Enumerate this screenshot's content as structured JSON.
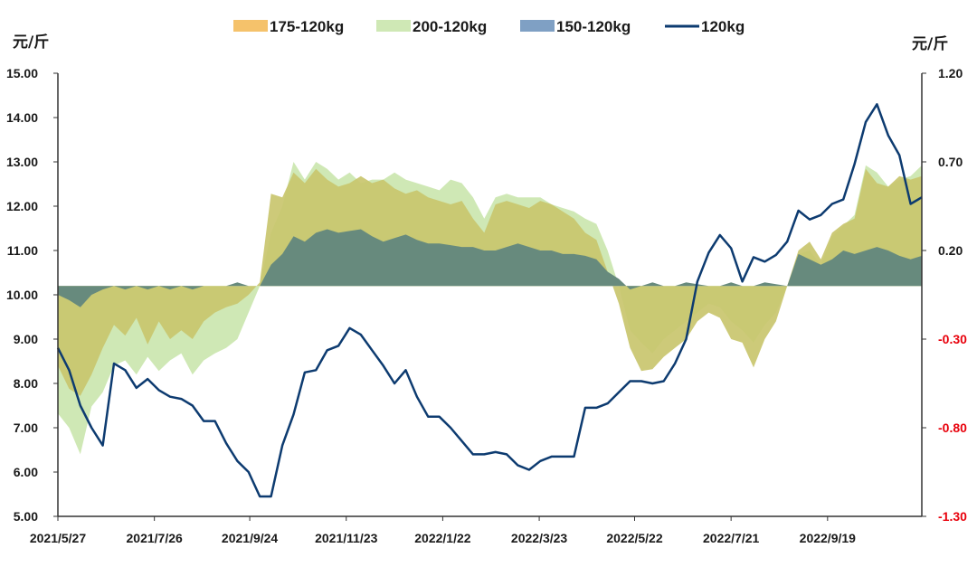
{
  "chart_data": {
    "type": "area",
    "title": "",
    "legend_position": "top",
    "left_unit": "元/斤",
    "right_unit": "元/斤",
    "left_axis": {
      "min": 5.0,
      "max": 15.0,
      "ticks": [
        "5.00",
        "6.00",
        "7.00",
        "8.00",
        "9.00",
        "10.00",
        "11.00",
        "12.00",
        "13.00",
        "14.00",
        "15.00"
      ]
    },
    "right_axis": {
      "min": -1.3,
      "max": 1.2,
      "ticks": [
        {
          "label": "-1.30",
          "value": -1.3,
          "color": "#e8000b"
        },
        {
          "label": "-0.80",
          "value": -0.8,
          "color": "#e8000b"
        },
        {
          "label": "-0.30",
          "value": -0.3,
          "color": "#e8000b"
        },
        {
          "label": "0.20",
          "value": 0.2,
          "color": "#1a1a1a"
        },
        {
          "label": "0.70",
          "value": 0.7,
          "color": "#1a1a1a"
        },
        {
          "label": "1.20",
          "value": 1.2,
          "color": "#1a1a1a"
        }
      ]
    },
    "x_ticks": [
      {
        "label": "2021/5/27",
        "index": 0
      },
      {
        "label": "2021/7/26",
        "index": 8.6
      },
      {
        "label": "2021/9/24",
        "index": 17.1
      },
      {
        "label": "2021/11/23",
        "index": 25.7
      },
      {
        "label": "2022/1/22",
        "index": 34.3
      },
      {
        "label": "2022/3/23",
        "index": 42.9
      },
      {
        "label": "2022/5/22",
        "index": 51.4
      },
      {
        "label": "2022/7/21",
        "index": 60.0
      },
      {
        "label": "2022/9/19",
        "index": 68.6
      }
    ],
    "x_count": 78,
    "baseline": 10.2,
    "colors": {
      "s175": "#f5c26b",
      "s200": "#cfe8b5",
      "s150": "#7fa0c4",
      "line": "#0d3b70",
      "overlap_dark": "#678a7d",
      "overlap_olive": "#c9c66e"
    },
    "series": [
      {
        "name": "175-120kg",
        "key": "s175",
        "axis": "right",
        "values": [
          -0.45,
          -0.58,
          -0.62,
          -0.5,
          -0.35,
          -0.22,
          -0.28,
          -0.18,
          -0.33,
          -0.2,
          -0.3,
          -0.25,
          -0.3,
          -0.2,
          -0.15,
          -0.12,
          -0.1,
          -0.05,
          0.02,
          0.52,
          0.5,
          0.64,
          0.58,
          0.66,
          0.6,
          0.56,
          0.58,
          0.62,
          0.58,
          0.6,
          0.55,
          0.52,
          0.54,
          0.5,
          0.48,
          0.46,
          0.48,
          0.38,
          0.3,
          0.46,
          0.48,
          0.46,
          0.44,
          0.48,
          0.46,
          0.42,
          0.38,
          0.3,
          0.26,
          0.08,
          -0.1,
          -0.35,
          -0.48,
          -0.47,
          -0.4,
          -0.35,
          -0.3,
          -0.2,
          -0.15,
          -0.18,
          -0.3,
          -0.32,
          -0.46,
          -0.3,
          -0.2,
          0.0,
          0.2,
          0.25,
          0.15,
          0.3,
          0.35,
          0.38,
          0.66,
          0.58,
          0.56,
          0.62,
          0.6,
          0.62
        ]
      },
      {
        "name": "200-120kg",
        "key": "s200",
        "axis": "right",
        "values": [
          -0.72,
          -0.8,
          -0.95,
          -0.68,
          -0.6,
          -0.45,
          -0.42,
          -0.5,
          -0.4,
          -0.48,
          -0.42,
          -0.38,
          -0.5,
          -0.42,
          -0.38,
          -0.35,
          -0.3,
          -0.15,
          0.0,
          0.3,
          0.45,
          0.7,
          0.6,
          0.7,
          0.66,
          0.6,
          0.64,
          0.58,
          0.6,
          0.6,
          0.64,
          0.6,
          0.58,
          0.56,
          0.54,
          0.6,
          0.58,
          0.5,
          0.38,
          0.5,
          0.52,
          0.5,
          0.5,
          0.5,
          0.46,
          0.44,
          0.42,
          0.38,
          0.35,
          0.2,
          0.0,
          -0.25,
          -0.32,
          -0.38,
          -0.3,
          -0.25,
          -0.2,
          -0.15,
          -0.1,
          -0.12,
          -0.2,
          -0.25,
          -0.32,
          -0.22,
          -0.15,
          0.0,
          0.18,
          0.2,
          0.12,
          0.28,
          0.34,
          0.4,
          0.68,
          0.64,
          0.56,
          0.6,
          0.62,
          0.68
        ]
      },
      {
        "name": "150-120kg",
        "key": "s150",
        "axis": "right",
        "values": [
          -0.05,
          -0.08,
          -0.12,
          -0.05,
          -0.02,
          0.0,
          -0.02,
          0.0,
          -0.02,
          0.0,
          -0.02,
          0.0,
          -0.02,
          0.0,
          0.0,
          0.0,
          0.02,
          0.0,
          0.0,
          0.12,
          0.18,
          0.28,
          0.25,
          0.3,
          0.32,
          0.3,
          0.31,
          0.32,
          0.28,
          0.25,
          0.27,
          0.29,
          0.26,
          0.24,
          0.24,
          0.23,
          0.22,
          0.22,
          0.2,
          0.2,
          0.22,
          0.24,
          0.22,
          0.2,
          0.2,
          0.18,
          0.18,
          0.17,
          0.15,
          0.08,
          0.04,
          -0.02,
          0.0,
          0.02,
          0.0,
          0.0,
          0.02,
          0.01,
          0.0,
          0.0,
          0.02,
          0.0,
          0.0,
          0.02,
          0.01,
          0.0,
          0.18,
          0.15,
          0.12,
          0.15,
          0.2,
          0.18,
          0.2,
          0.22,
          0.2,
          0.17,
          0.15,
          0.17
        ]
      },
      {
        "name": "120kg",
        "key": "line",
        "axis": "left",
        "style": "line",
        "values": [
          8.8,
          8.3,
          7.5,
          7.0,
          6.6,
          8.45,
          8.3,
          7.9,
          8.1,
          7.85,
          7.7,
          7.65,
          7.5,
          7.15,
          7.15,
          6.65,
          6.25,
          6.0,
          5.45,
          5.45,
          6.6,
          7.3,
          8.25,
          8.3,
          8.75,
          8.85,
          9.25,
          9.1,
          8.75,
          8.4,
          8.0,
          8.3,
          7.7,
          7.25,
          7.25,
          7.0,
          6.7,
          6.4,
          6.4,
          6.45,
          6.4,
          6.15,
          6.05,
          6.25,
          6.35,
          6.35,
          6.35,
          7.45,
          7.45,
          7.55,
          7.8,
          8.05,
          8.05,
          8.0,
          8.05,
          8.45,
          9.0,
          10.3,
          10.95,
          11.35,
          11.05,
          10.3,
          10.85,
          10.75,
          10.9,
          11.2,
          11.9,
          11.7,
          11.8,
          12.05,
          12.15,
          12.95,
          13.9,
          14.3,
          13.6,
          13.15,
          12.05,
          12.2
        ]
      }
    ]
  }
}
